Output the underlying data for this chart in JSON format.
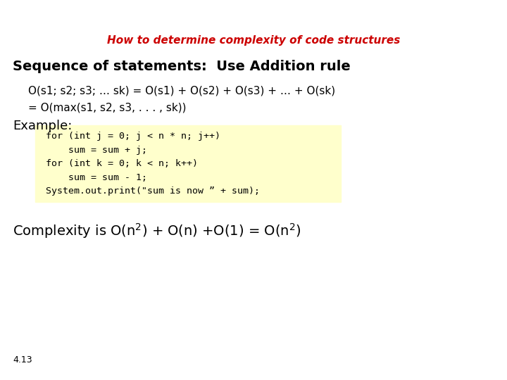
{
  "title": "How to determine complexity of code structures",
  "title_color": "#cc0000",
  "title_fontsize": 11,
  "bg_color": "#ffffff",
  "section1_bold": "Sequence of statements:  Use Addition rule",
  "section1_fontsize": 14,
  "line1": "O(s1; s2; s3; … sk) = O(s1) + O(s2) + O(s3) + … + O(sk)",
  "line2": "= O(max(s1, s2, s3, . . . , sk))",
  "line_fontsize": 11,
  "example_label": "Example:",
  "example_fontsize": 13,
  "code_lines": [
    "for (int j = 0; j < n * n; j++)",
    "    sum = sum + j;",
    "for (int k = 0; k < n; k++)",
    "    sum = sum - 1;",
    "System.out.print(\"sum is now ” + sum);"
  ],
  "code_fontsize": 9.5,
  "code_bg": "#ffffcc",
  "complexity_fontsize": 14,
  "footer": "4.13",
  "footer_fontsize": 9
}
